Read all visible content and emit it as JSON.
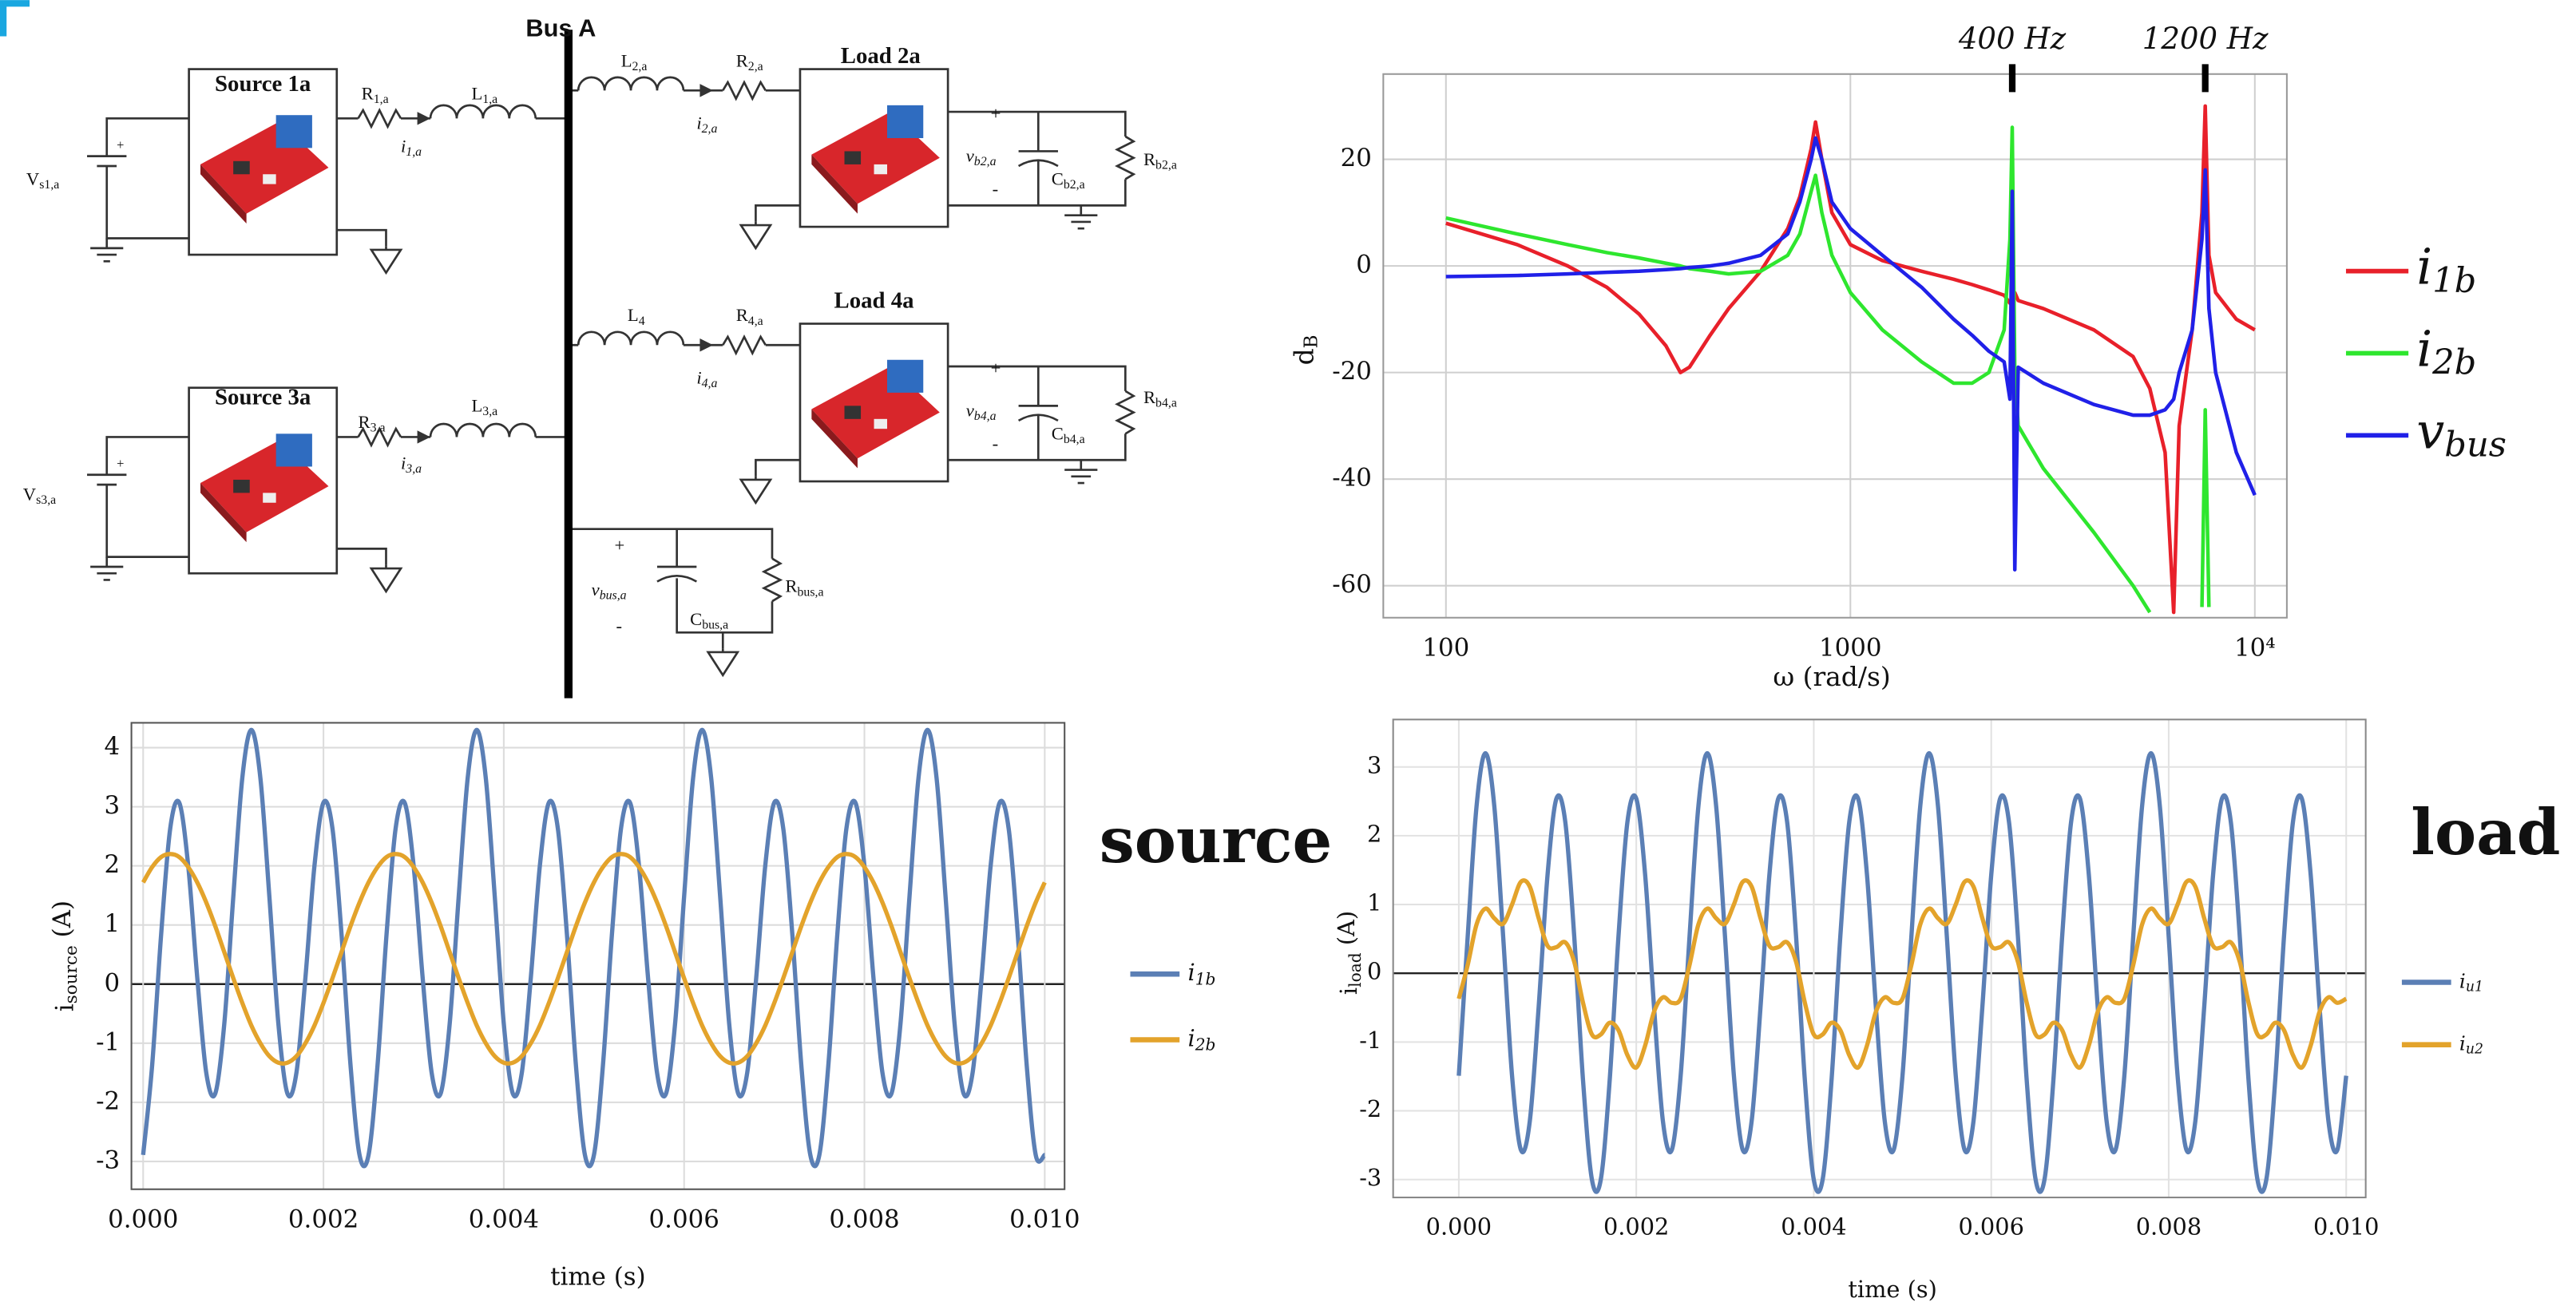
{
  "diagram": {
    "labels": [
      "Bus A",
      "Source 1a",
      "Source 3a",
      "Load 2a",
      "Load 4a",
      "Vs1,a",
      "R1,a",
      "L1,a",
      "i1,a",
      "Vs3,a",
      "R3,a",
      "L3,a",
      "i3,a",
      "L2,a",
      "R2,a",
      "i2,a",
      "+",
      "vb2,a",
      "-",
      "Cb2,a",
      "Rb2,a",
      "L4",
      "R4,a",
      "i4,a",
      "+",
      "vb4,a",
      "-",
      "Cb4,a",
      "Rb4,a",
      "+",
      "vbus,a",
      "-",
      "Cbus,a",
      "Rbus,a",
      "+",
      "+"
    ]
  },
  "chart_data": [
    {
      "type": "line",
      "xlabel": "ω (rad/s)",
      "ylabel": "dB",
      "log_x": true,
      "grid": true,
      "legend": "right",
      "xlim": [
        70,
        12000
      ],
      "ylim": [
        -66,
        36
      ],
      "xticks": [
        100,
        1000,
        {
          "value": 10000,
          "label": "10⁴"
        }
      ],
      "yticks": [
        -60,
        -40,
        -20,
        0,
        20
      ],
      "annotations": [
        {
          "text": "400 Hz",
          "x": 2513
        },
        {
          "text": "1200 Hz",
          "x": 7540
        }
      ],
      "x": [
        100,
        150,
        200,
        250,
        300,
        350,
        380,
        400,
        450,
        500,
        600,
        700,
        750,
        800,
        820,
        850,
        900,
        1000,
        1200,
        1500,
        1800,
        2000,
        2200,
        2400,
        2480,
        2513,
        2550,
        2600,
        3000,
        4000,
        5000,
        5500,
        6000,
        6300,
        6500,
        7000,
        7400,
        7540,
        7700,
        8000,
        9000,
        10000
      ],
      "series": [
        {
          "name": "i1b",
          "color": "#e8202a",
          "values": [
            8,
            4,
            0,
            -4,
            -9,
            -15,
            -20,
            -19,
            -13,
            -8,
            -1,
            7,
            13,
            22,
            27,
            20,
            10,
            4,
            1,
            -1,
            -2.5,
            -3.5,
            -4.5,
            -5.5,
            -7,
            -6,
            -5,
            -6.5,
            -8,
            -12,
            -17,
            -23,
            -35,
            -65,
            -30,
            -12,
            10,
            30,
            2,
            -5,
            -10,
            -12
          ]
        },
        {
          "name": "i2b",
          "color": "#2ee62e",
          "values": [
            9,
            6,
            4,
            2.5,
            1.5,
            0.5,
            0,
            -0.5,
            -1,
            -1.5,
            -1,
            2,
            6,
            14,
            17,
            10,
            2,
            -5,
            -12,
            -18,
            -22,
            -22,
            -20,
            -12,
            5,
            26,
            -20,
            -30,
            -38,
            -50,
            -60,
            -65,
            null,
            null,
            null,
            null,
            -64,
            -27,
            -64,
            null,
            null,
            null
          ]
        },
        {
          "name": "vbus",
          "color": "#2020e8",
          "values": [
            -2,
            -1.8,
            -1.5,
            -1.2,
            -1,
            -0.7,
            -0.5,
            -0.3,
            0,
            0.5,
            2,
            6,
            12,
            20,
            24,
            20,
            12,
            7,
            2,
            -4,
            -10,
            -13,
            -16,
            -18,
            -25,
            14,
            -57,
            -19,
            -22,
            -26,
            -28,
            -28,
            -27,
            -25,
            -20,
            -12,
            5,
            18,
            -8,
            -20,
            -35,
            -43
          ]
        }
      ]
    },
    {
      "type": "line",
      "xlabel": "time (s)",
      "ylabel": "isource (A)",
      "grid": true,
      "legend": "right",
      "annotations": [
        {
          "text": "source"
        }
      ],
      "xlim": [
        -0.00013,
        0.01022
      ],
      "ylim": [
        -3.47,
        4.42
      ],
      "xticks": [
        {
          "value": 0,
          "label": "0.000"
        },
        {
          "value": 0.002,
          "label": "0.002"
        },
        {
          "value": 0.004,
          "label": "0.004"
        },
        {
          "value": 0.006,
          "label": "0.006"
        },
        {
          "value": 0.008,
          "label": "0.008"
        },
        {
          "value": 0.01,
          "label": "0.010"
        }
      ],
      "yticks": [
        -3,
        -2,
        -1,
        0,
        1,
        2,
        3,
        4
      ],
      "x": [
        0,
        0.0001,
        0.0002,
        0.0003,
        0.0004,
        0.0005,
        0.0006,
        0.0007,
        0.0008,
        0.0009,
        0.001,
        0.0011,
        0.0012,
        0.0013,
        0.0014,
        0.0015,
        0.0016,
        0.0017,
        0.0018,
        0.0019,
        0.002,
        0.0021,
        0.0022,
        0.0023,
        0.0024,
        0.0025,
        0.0026,
        0.0027,
        0.0028,
        0.0029,
        0.003,
        0.0031,
        0.0032,
        0.0033,
        0.0034,
        0.0035,
        0.0036,
        0.0037,
        0.0038,
        0.0039,
        0.004,
        0.0041,
        0.0042,
        0.0043,
        0.0044,
        0.0045,
        0.0046,
        0.0047,
        0.0048,
        0.0049,
        0.005,
        0.0051,
        0.0052,
        0.0053,
        0.0054,
        0.0055,
        0.0056,
        0.0057,
        0.0058,
        0.0059,
        0.006,
        0.0061,
        0.0062,
        0.0063,
        0.0064,
        0.0065,
        0.0066,
        0.0067,
        0.0068,
        0.0069,
        0.007,
        0.0071,
        0.0072,
        0.0073,
        0.0074,
        0.0075,
        0.0076,
        0.0077,
        0.0078,
        0.0079,
        0.008,
        0.0081,
        0.0082,
        0.0083,
        0.0084,
        0.0085,
        0.0086,
        0.0087,
        0.0088,
        0.0089,
        0.009,
        0.0091,
        0.0092,
        0.0093,
        0.0094,
        0.0095,
        0.0096,
        0.0097,
        0.0098,
        0.0099,
        0.01
      ],
      "series": [
        {
          "name": "i1b",
          "color": "#5b7fb5",
          "values": [
            -2.89,
            -1.37,
            0.85,
            2.63,
            3.07,
            2.0,
            0.11,
            -1.5,
            -1.85,
            -0.67,
            1.48,
            3.49,
            4.3,
            3.49,
            1.48,
            -0.67,
            -1.85,
            -1.5,
            0.11,
            2.0,
            3.07,
            2.63,
            0.85,
            -1.37,
            -2.89,
            -2.89,
            -1.37,
            0.85,
            2.63,
            3.07,
            2.0,
            0.11,
            -1.5,
            -1.85,
            -0.67,
            1.48,
            3.49,
            4.3,
            3.49,
            1.48,
            -0.67,
            -1.85,
            -1.5,
            0.11,
            2.0,
            3.07,
            2.63,
            0.85,
            -1.37,
            -2.89,
            -2.89,
            -1.37,
            0.85,
            2.63,
            3.07,
            2.0,
            0.11,
            -1.5,
            -1.85,
            -0.67,
            1.48,
            3.49,
            4.3,
            3.49,
            1.48,
            -0.67,
            -1.85,
            -1.5,
            0.11,
            2.0,
            3.07,
            2.63,
            0.85,
            -1.37,
            -2.89,
            -2.89,
            -1.37,
            0.85,
            2.63,
            3.07,
            2.0,
            0.11,
            -1.5,
            -1.85,
            -0.67,
            1.48,
            3.49,
            4.3,
            3.49,
            1.48,
            -0.67,
            -1.85,
            -1.5,
            0.11,
            2.0,
            3.07,
            2.63,
            0.85,
            -1.37,
            -2.89,
            -2.89
          ]
        },
        {
          "name": "i2b",
          "color": "#e3a32b",
          "values": [
            1.72,
            1.98,
            2.15,
            2.2,
            2.15,
            1.98,
            1.72,
            1.38,
            0.98,
            0.54,
            0.1,
            -0.32,
            -0.7,
            -1.0,
            -1.22,
            -1.33,
            -1.33,
            -1.22,
            -1.0,
            -0.7,
            -0.32,
            0.1,
            0.54,
            0.98,
            1.38,
            1.72,
            1.98,
            2.15,
            2.2,
            2.15,
            1.98,
            1.72,
            1.38,
            0.98,
            0.54,
            0.1,
            -0.32,
            -0.7,
            -1.0,
            -1.22,
            -1.33,
            -1.33,
            -1.22,
            -1.0,
            -0.7,
            -0.32,
            0.1,
            0.54,
            0.98,
            1.38,
            1.72,
            1.98,
            2.15,
            2.2,
            2.15,
            1.98,
            1.72,
            1.38,
            0.98,
            0.54,
            0.1,
            -0.32,
            -0.7,
            -1.0,
            -1.22,
            -1.33,
            -1.33,
            -1.22,
            -1.0,
            -0.7,
            -0.32,
            0.1,
            0.54,
            0.98,
            1.38,
            1.72,
            1.98,
            2.15,
            2.2,
            2.15,
            1.98,
            1.72,
            1.38,
            0.98,
            0.54,
            0.1,
            -0.32,
            -0.7,
            -1.0,
            -1.22,
            -1.33,
            -1.33,
            -1.22,
            -1.0,
            -0.7,
            -0.32,
            0.1,
            0.54,
            0.98,
            1.38,
            1.72
          ]
        }
      ]
    },
    {
      "type": "line",
      "xlabel": "time (s)",
      "ylabel": "iload (A)",
      "grid": true,
      "legend": "right",
      "annotations": [
        {
          "text": "load"
        }
      ],
      "xlim": [
        -0.00074,
        0.01022
      ],
      "ylim": [
        -3.26,
        3.69
      ],
      "xticks": [
        {
          "value": 0,
          "label": "0.000"
        },
        {
          "value": 0.002,
          "label": "0.002"
        },
        {
          "value": 0.004,
          "label": "0.004"
        },
        {
          "value": 0.006,
          "label": "0.006"
        },
        {
          "value": 0.008,
          "label": "0.008"
        },
        {
          "value": 0.01,
          "label": "0.010"
        }
      ],
      "yticks": [
        -3,
        -2,
        -1,
        0,
        1,
        2,
        3
      ],
      "x": [
        0,
        0.0001,
        0.0002,
        0.0003,
        0.0004,
        0.0005,
        0.0006,
        0.0007,
        0.0008,
        0.0009,
        0.001,
        0.0011,
        0.0012,
        0.0013,
        0.0014,
        0.0015,
        0.0016,
        0.0017,
        0.0018,
        0.0019,
        0.002,
        0.0021,
        0.0022,
        0.0023,
        0.0024,
        0.0025,
        0.0026,
        0.0027,
        0.0028,
        0.0029,
        0.003,
        0.0031,
        0.0032,
        0.0033,
        0.0034,
        0.0035,
        0.0036,
        0.0037,
        0.0038,
        0.0039,
        0.004,
        0.0041,
        0.0042,
        0.0043,
        0.0044,
        0.0045,
        0.0046,
        0.0047,
        0.0048,
        0.0049,
        0.005,
        0.0051,
        0.0052,
        0.0053,
        0.0054,
        0.0055,
        0.0056,
        0.0057,
        0.0058,
        0.0059,
        0.006,
        0.0061,
        0.0062,
        0.0063,
        0.0064,
        0.0065,
        0.0066,
        0.0067,
        0.0068,
        0.0069,
        0.007,
        0.0071,
        0.0072,
        0.0073,
        0.0074,
        0.0075,
        0.0076,
        0.0077,
        0.0078,
        0.0079,
        0.008,
        0.0081,
        0.0082,
        0.0083,
        0.0084,
        0.0085,
        0.0086,
        0.0087,
        0.0088,
        0.0089,
        0.009,
        0.0091,
        0.0092,
        0.0093,
        0.0094,
        0.0095,
        0.0096,
        0.0097,
        0.0098,
        0.0099,
        0.01
      ],
      "series": [
        {
          "name": "iu1",
          "color": "#5b7fb5",
          "values": [
            -1.49,
            0.53,
            2.43,
            3.2,
            2.43,
            0.53,
            -1.49,
            -2.57,
            -2.15,
            -0.49,
            1.43,
            2.54,
            2.2,
            0.55,
            -1.56,
            -3.0,
            -3.0,
            -1.56,
            0.55,
            2.2,
            2.54,
            1.43,
            -0.49,
            -2.15,
            -2.57,
            -1.49,
            0.53,
            2.43,
            3.2,
            2.43,
            0.53,
            -1.49,
            -2.57,
            -2.15,
            -0.49,
            1.43,
            2.54,
            2.2,
            0.55,
            -1.56,
            -3.0,
            -3.0,
            -1.56,
            0.55,
            2.2,
            2.54,
            1.43,
            -0.49,
            -2.15,
            -2.57,
            -1.49,
            0.53,
            2.43,
            3.2,
            2.43,
            0.53,
            -1.49,
            -2.57,
            -2.15,
            -0.49,
            1.43,
            2.54,
            2.2,
            0.55,
            -1.56,
            -3.0,
            -3.0,
            -1.56,
            0.55,
            2.2,
            2.54,
            1.43,
            -0.49,
            -2.15,
            -2.57,
            -1.49,
            0.53,
            2.43,
            3.2,
            2.43,
            0.53,
            -1.49,
            -2.57,
            -2.15,
            -0.49,
            1.43,
            2.54,
            2.2,
            0.55,
            -1.56,
            -3.0,
            -3.0,
            -1.56,
            0.55,
            2.2,
            2.54,
            1.43,
            -0.49,
            -2.15,
            -2.57,
            -1.49
          ]
        },
        {
          "name": "iu2",
          "color": "#e3a32b",
          "values": [
            -0.37,
            0.12,
            0.71,
            0.94,
            0.8,
            0.72,
            1.0,
            1.33,
            1.26,
            0.8,
            0.4,
            0.38,
            0.45,
            0.17,
            -0.43,
            -0.89,
            -0.89,
            -0.72,
            -0.83,
            -1.19,
            -1.37,
            -1.05,
            -0.56,
            -0.35,
            -0.43,
            -0.37,
            0.12,
            0.71,
            0.94,
            0.8,
            0.72,
            1.0,
            1.33,
            1.26,
            0.8,
            0.4,
            0.38,
            0.45,
            0.17,
            -0.43,
            -0.89,
            -0.89,
            -0.72,
            -0.83,
            -1.19,
            -1.37,
            -1.05,
            -0.56,
            -0.35,
            -0.43,
            -0.37,
            0.12,
            0.71,
            0.94,
            0.8,
            0.72,
            1.0,
            1.33,
            1.26,
            0.8,
            0.4,
            0.38,
            0.45,
            0.17,
            -0.43,
            -0.89,
            -0.89,
            -0.72,
            -0.83,
            -1.19,
            -1.37,
            -1.05,
            -0.56,
            -0.35,
            -0.43,
            -0.37,
            0.12,
            0.71,
            0.94,
            0.8,
            0.72,
            1.0,
            1.33,
            1.26,
            0.8,
            0.4,
            0.38,
            0.45,
            0.17,
            -0.43,
            -0.89,
            -0.89,
            -0.72,
            -0.83,
            -1.19,
            -1.37,
            -1.05,
            -0.56,
            -0.35,
            -0.43,
            -0.37
          ]
        }
      ]
    }
  ]
}
